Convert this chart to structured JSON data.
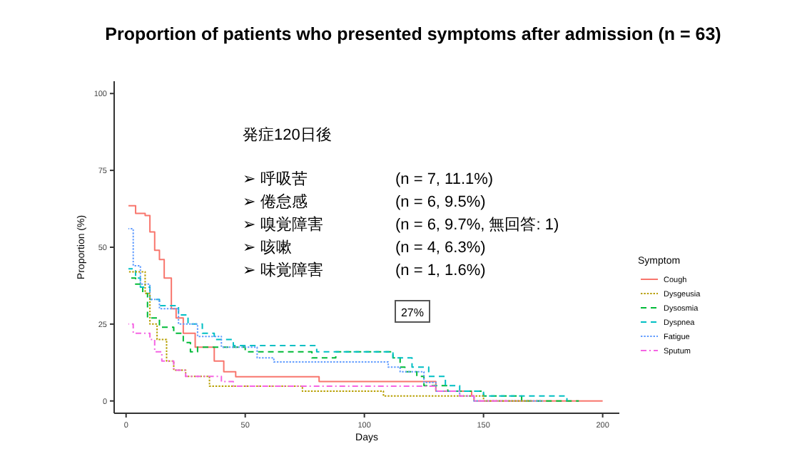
{
  "chart_data": {
    "type": "step",
    "title": "Proportion of patients who presented symptoms after admission (n = 63)",
    "xlabel": "Days",
    "ylabel": "Proportion (%)",
    "legend_title": "Symptom",
    "legend": "right",
    "grid": false,
    "xlim": [
      -5,
      207
    ],
    "xticks": [
      0,
      50,
      100,
      150,
      200
    ],
    "ylim": [
      -4,
      104
    ],
    "yticks": [
      0,
      25,
      50,
      75,
      100
    ],
    "series": [
      {
        "name": "Cough",
        "color": "#f8766d",
        "line_style": "solid",
        "x": [
          1,
          4,
          8,
          10,
          12,
          14,
          16,
          19,
          21,
          24,
          29,
          37,
          41,
          46,
          81,
          130,
          145,
          146,
          200
        ],
        "values": [
          63.5,
          61,
          60.3,
          55,
          49,
          46,
          40,
          30,
          27,
          22,
          17.5,
          13,
          9.5,
          7.9,
          6.3,
          3.2,
          1.6,
          0,
          0
        ]
      },
      {
        "name": "Dysgeusia",
        "color": "#b79f00",
        "line_style": "dotted",
        "x": [
          1,
          8,
          10,
          13,
          17,
          20,
          25,
          35,
          74,
          108,
          150,
          170
        ],
        "values": [
          42,
          35,
          25,
          20,
          13,
          10,
          8,
          4.8,
          3.2,
          1.6,
          0,
          0
        ]
      },
      {
        "name": "Dysosmia",
        "color": "#00ba38",
        "line_style": "dashed",
        "x": [
          1,
          4,
          7,
          9,
          14,
          20,
          24,
          27,
          30,
          50,
          78,
          88,
          108,
          112,
          115,
          117,
          122,
          125,
          135,
          150,
          166,
          190
        ],
        "values": [
          40,
          38,
          35,
          27,
          24,
          22,
          19,
          16,
          17.5,
          16,
          14,
          16,
          16,
          14,
          11,
          9.5,
          8,
          5,
          3.2,
          1.6,
          0,
          0
        ]
      },
      {
        "name": "Dyspnea",
        "color": "#00bfc4",
        "line_style": "dashed",
        "x": [
          1,
          4,
          6,
          10,
          14,
          22,
          26,
          32,
          37,
          45,
          80,
          107,
          112,
          120,
          127,
          134,
          140,
          150,
          185
        ],
        "values": [
          43,
          40,
          37,
          33,
          31,
          28,
          25,
          22,
          20,
          18,
          16,
          16,
          14,
          11,
          8,
          5,
          3.2,
          1.6,
          0
        ]
      },
      {
        "name": "Fatigue",
        "color": "#619cff",
        "line_style": "dotted",
        "x": [
          1,
          3,
          6,
          10,
          14,
          22,
          30,
          40,
          55,
          62,
          110,
          115,
          125,
          130,
          140,
          146,
          175
        ],
        "values": [
          56,
          44,
          38,
          33,
          30,
          25,
          21,
          17.5,
          14,
          12.7,
          11,
          9.5,
          6,
          3.2,
          1.6,
          0,
          0
        ]
      },
      {
        "name": "Sputum",
        "color": "#f564e3",
        "line_style": "dotdash",
        "x": [
          1,
          3,
          10,
          12,
          15,
          20,
          25,
          40,
          45,
          125,
          130,
          140,
          146,
          160
        ],
        "values": [
          25,
          22,
          20,
          16,
          13,
          10,
          8,
          6.3,
          4.8,
          4.8,
          3.2,
          1.6,
          0,
          0
        ]
      }
    ],
    "annotations": [
      "発症120日後",
      "➢ 呼吸苦",
      "(n = 7, 11.1%)",
      "➢ 倦怠感",
      "(n = 6, 9.5%)",
      "➢ 嗅覚障害",
      "(n = 6, 9.7%, 無回答: 1)",
      "➢ 咳嗽",
      "(n = 4, 6.3%)",
      "➢ 味覚障害",
      "(n = 1, 1.6%)",
      "27%"
    ]
  }
}
